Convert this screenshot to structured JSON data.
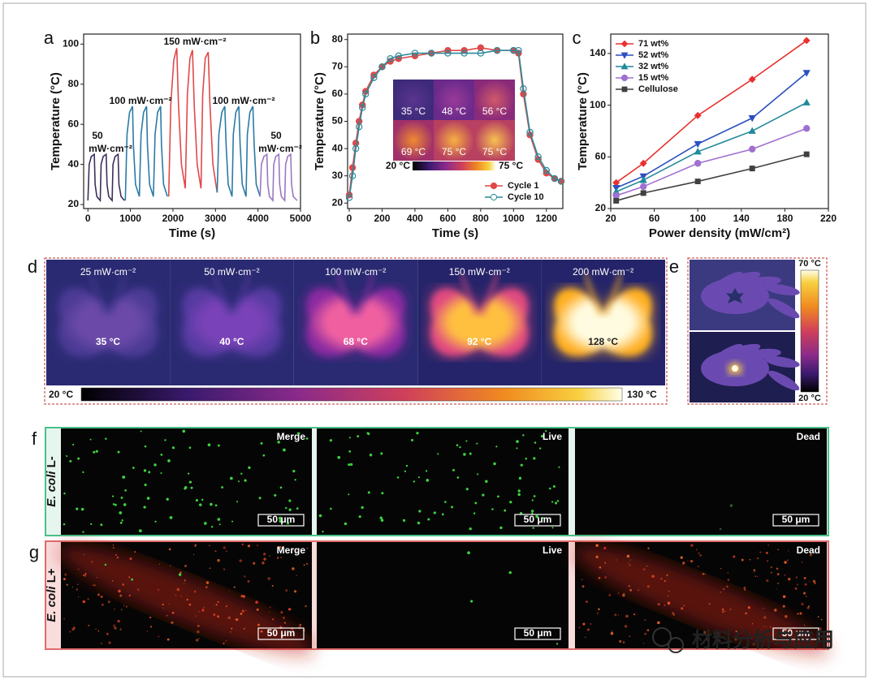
{
  "chart_data": [
    {
      "type": "line",
      "xlabel": "Time (s)",
      "ylabel": "Temperature (°C)",
      "xlim": [
        -100,
        5000
      ],
      "ylim": [
        18,
        105
      ],
      "xticks": [
        0,
        1000,
        2000,
        3000,
        4000,
        5000
      ],
      "yticks": [
        20,
        40,
        60,
        80,
        100
      ],
      "annotations": [
        "50",
        "mW·cm⁻²",
        "100 mW·cm⁻²",
        "150 mW·cm⁻²",
        "100 mW·cm⁻²",
        "50",
        "mW·cm⁻²"
      ],
      "series": [
        {
          "color": "#3d2f5b",
          "x": [
            0,
            30,
            80,
            150,
            170,
            210,
            290,
            310,
            360,
            430,
            450,
            490,
            570,
            590,
            640,
            710,
            730,
            780,
            860
          ],
          "values": [
            22,
            40,
            44,
            45,
            30,
            24,
            22,
            40,
            44,
            45,
            30,
            24,
            22,
            40,
            44,
            45,
            30,
            24,
            22
          ]
        },
        {
          "color": "#2a7ba6",
          "x": [
            880,
            920,
            980,
            1050,
            1070,
            1120,
            1210,
            1250,
            1310,
            1380,
            1400,
            1450,
            1540,
            1580,
            1640,
            1710,
            1730,
            1780,
            1870
          ],
          "values": [
            22,
            55,
            66,
            69,
            50,
            30,
            24,
            55,
            66,
            69,
            50,
            30,
            24,
            55,
            66,
            69,
            50,
            30,
            24
          ]
        },
        {
          "color": "#e04848",
          "x": [
            1900,
            1950,
            2020,
            2090,
            2130,
            2200,
            2290,
            2340,
            2400,
            2460,
            2500,
            2570,
            2660,
            2700,
            2760,
            2830,
            2870,
            2940,
            3040
          ],
          "values": [
            24,
            70,
            92,
            98,
            70,
            40,
            28,
            75,
            93,
            97,
            70,
            40,
            28,
            75,
            93,
            96,
            70,
            40,
            26
          ]
        },
        {
          "color": "#2a7ba6",
          "x": [
            3040,
            3080,
            3150,
            3220,
            3250,
            3300,
            3390,
            3420,
            3480,
            3550,
            3580,
            3630,
            3720,
            3750,
            3810,
            3880,
            3910,
            3960,
            4050
          ],
          "values": [
            26,
            55,
            66,
            69,
            50,
            30,
            24,
            55,
            66,
            69,
            50,
            30,
            24,
            55,
            66,
            69,
            50,
            30,
            24
          ]
        },
        {
          "color": "#9a78c2",
          "x": [
            4050,
            4080,
            4140,
            4210,
            4230,
            4270,
            4350,
            4370,
            4420,
            4490,
            4510,
            4550,
            4630,
            4650,
            4700,
            4770,
            4790,
            4830,
            4920
          ],
          "values": [
            24,
            40,
            44,
            45,
            30,
            24,
            22,
            40,
            44,
            45,
            30,
            24,
            22,
            40,
            44,
            45,
            30,
            24,
            22
          ]
        }
      ]
    },
    {
      "type": "line",
      "xlabel": "Time (s)",
      "ylabel": "Temperature (°C)",
      "xlim": [
        -10,
        1300
      ],
      "ylim": [
        18,
        82
      ],
      "xticks": [
        0,
        200,
        400,
        600,
        800,
        1000,
        1200
      ],
      "yticks": [
        20,
        30,
        40,
        50,
        60,
        70,
        80
      ],
      "x": [
        0,
        20,
        40,
        60,
        80,
        100,
        150,
        200,
        250,
        300,
        400,
        500,
        600,
        700,
        800,
        900,
        1000,
        1030,
        1060,
        1100,
        1150,
        1200,
        1250,
        1290
      ],
      "legend": "lower right",
      "series": [
        {
          "name": "Cycle 1",
          "color": "#e04848",
          "marker": "circle",
          "values": [
            23,
            33,
            42,
            50,
            56,
            61,
            67,
            70,
            72,
            73,
            74,
            75,
            76,
            76,
            77,
            76,
            76,
            75,
            60,
            45,
            36,
            31,
            29,
            28
          ]
        },
        {
          "name": "Cycle 10",
          "color": "#2a8a9a",
          "marker": "circle-open",
          "values": [
            22,
            30,
            40,
            48,
            55,
            60,
            66,
            70,
            73,
            74,
            75,
            75,
            75,
            75,
            75,
            76,
            76,
            76,
            62,
            46,
            37,
            32,
            29,
            28
          ]
        }
      ],
      "inset": {
        "labels": [
          "35 °C",
          "48 °C",
          "56 °C",
          "69 °C",
          "75 °C",
          "75 °C"
        ],
        "colorbar": [
          "20 °C",
          "75 °C"
        ]
      }
    },
    {
      "type": "line",
      "xlabel": "Power density (mW/cm²)",
      "ylabel": "Temperature (°C)",
      "xlim": [
        20,
        220
      ],
      "ylim": [
        20,
        155
      ],
      "xticks": [
        20,
        60,
        100,
        140,
        180,
        220
      ],
      "yticks": [
        20,
        60,
        100,
        140
      ],
      "x": [
        25,
        50,
        100,
        150,
        200
      ],
      "legend": "upper left",
      "series": [
        {
          "name": "71 wt%",
          "color": "#e8302e",
          "marker": "diamond",
          "values": [
            40,
            55,
            92,
            120,
            150
          ]
        },
        {
          "name": "52 wt%",
          "color": "#2a4fc0",
          "marker": "triangle-down",
          "values": [
            36,
            45,
            70,
            90,
            125
          ]
        },
        {
          "name": "32 wt%",
          "color": "#1f8a9a",
          "marker": "triangle-up",
          "values": [
            33,
            42,
            64,
            80,
            102
          ]
        },
        {
          "name": "15 wt%",
          "color": "#a070d0",
          "marker": "circle",
          "values": [
            30,
            37,
            55,
            66,
            82
          ]
        },
        {
          "name": "Cellulose",
          "color": "#404040",
          "marker": "square",
          "values": [
            26,
            32,
            41,
            51,
            62
          ]
        }
      ]
    }
  ],
  "panel_labels": [
    "a",
    "b",
    "c",
    "d",
    "e",
    "f",
    "g"
  ],
  "thermal_series": {
    "power_labels": [
      "25 mW·cm⁻²",
      "50 mW·cm⁻²",
      "100 mW·cm⁻²",
      "150 mW·cm⁻²",
      "200 mW·cm⁻²"
    ],
    "temperatures": [
      "35 °C",
      "40 °C",
      "68 °C",
      "92 °C",
      "128 °C"
    ],
    "colorbar": [
      "20 °C",
      "130 °C"
    ]
  },
  "hand_image": {
    "colorbar": [
      "70 °C",
      "20 °C"
    ]
  },
  "microscopy": {
    "channels": [
      "Merge",
      "Live",
      "Dead"
    ],
    "scale_bar": "50 μm",
    "rows": [
      {
        "species": "E. coli",
        "condition": "L-"
      },
      {
        "species": "E. coli",
        "condition": "L+"
      }
    ]
  },
  "watermark": "材料分析与应用"
}
